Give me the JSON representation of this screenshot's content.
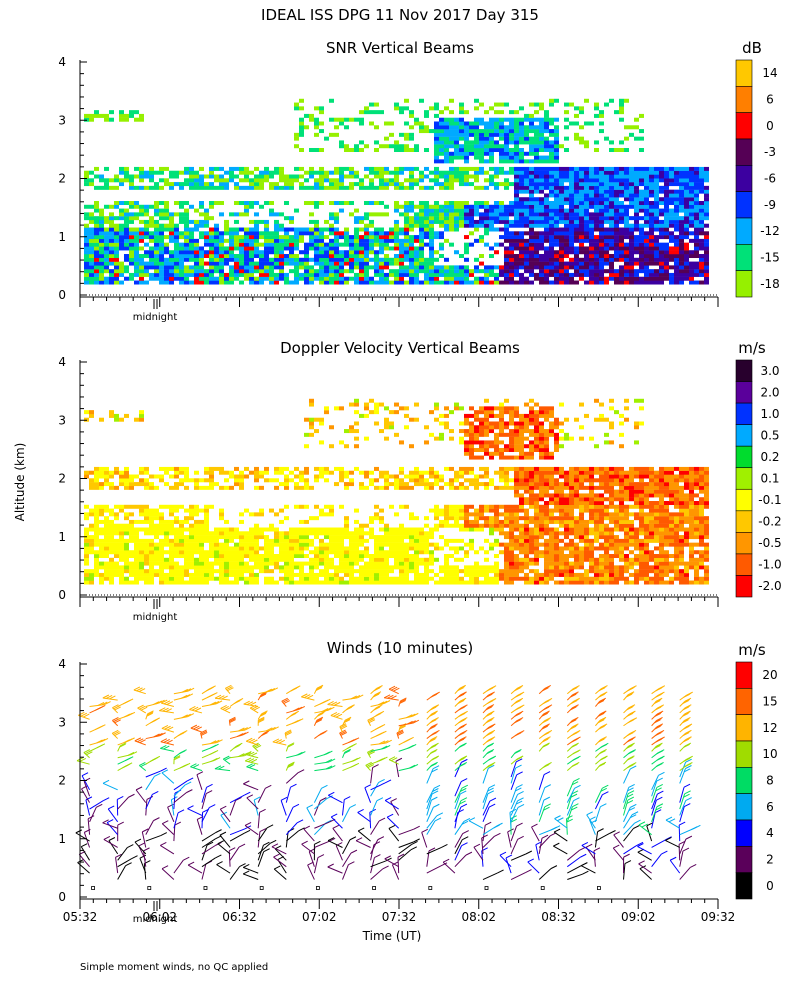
{
  "page": {
    "title": "IDEAL ISS DPG  11 Nov 2017 Day 315",
    "ylabel": "Altitude (km)",
    "xlabel": "Time (UT)",
    "footnote": "Simple moment winds, no QC applied",
    "midnight_label": "midnight"
  },
  "chart_data": [
    {
      "type": "heatmap",
      "title": "SNR Vertical Beams",
      "ylabel": "Altitude (km)",
      "ylim": [
        0,
        4
      ],
      "yticks": [
        "0",
        "1",
        "2",
        "3",
        "4"
      ],
      "xlim": [
        "05:32",
        "09:32"
      ],
      "colorbar": {
        "unit": "dB",
        "labels": [
          "14",
          "6",
          "0",
          "-3",
          "-6",
          "-9",
          "-12",
          "-15",
          "-18"
        ],
        "colors": [
          "#ffc800",
          "#ff7f00",
          "#ff0000",
          "#550055",
          "#3c00a0",
          "#0032ff",
          "#00aaff",
          "#00e178",
          "#96f000"
        ]
      }
    },
    {
      "type": "heatmap",
      "title": "Doppler Velocity Vertical Beams",
      "ylabel": "Altitude (km)",
      "ylim": [
        0,
        4
      ],
      "yticks": [
        "0",
        "1",
        "2",
        "3",
        "4"
      ],
      "xlim": [
        "05:32",
        "09:32"
      ],
      "colorbar": {
        "unit": "m/s",
        "labels": [
          "3.0",
          "2.0",
          "1.0",
          "0.5",
          "0.2",
          "0.1",
          "-0.1",
          "-0.2",
          "-0.5",
          "-1.0",
          "-2.0"
        ],
        "colors": [
          "#28002d",
          "#5a009b",
          "#0032ff",
          "#00aaff",
          "#00dc2d",
          "#a0f000",
          "#ffff00",
          "#ffc800",
          "#ff9600",
          "#ff5a00",
          "#ff0000"
        ]
      }
    },
    {
      "type": "wind-barbs",
      "title": "Winds (10 minutes)",
      "ylabel": "Altitude (km)",
      "xlabel": "Time (UT)",
      "ylim": [
        0,
        4
      ],
      "yticks": [
        "0",
        "1",
        "2",
        "3",
        "4"
      ],
      "xticks": [
        "05:32",
        "06:02",
        "06:32",
        "07:02",
        "07:32",
        "08:02",
        "08:32",
        "09:02",
        "09:32"
      ],
      "colorbar": {
        "unit": "m/s",
        "labels": [
          "20",
          "15",
          "12",
          "10",
          "8",
          "6",
          "4",
          "2",
          "0"
        ],
        "colors": [
          "#ff0000",
          "#ff6400",
          "#ffb400",
          "#a0dc00",
          "#00dc64",
          "#00aaf0",
          "#0000ff",
          "#5a005a",
          "#000000"
        ]
      }
    }
  ]
}
